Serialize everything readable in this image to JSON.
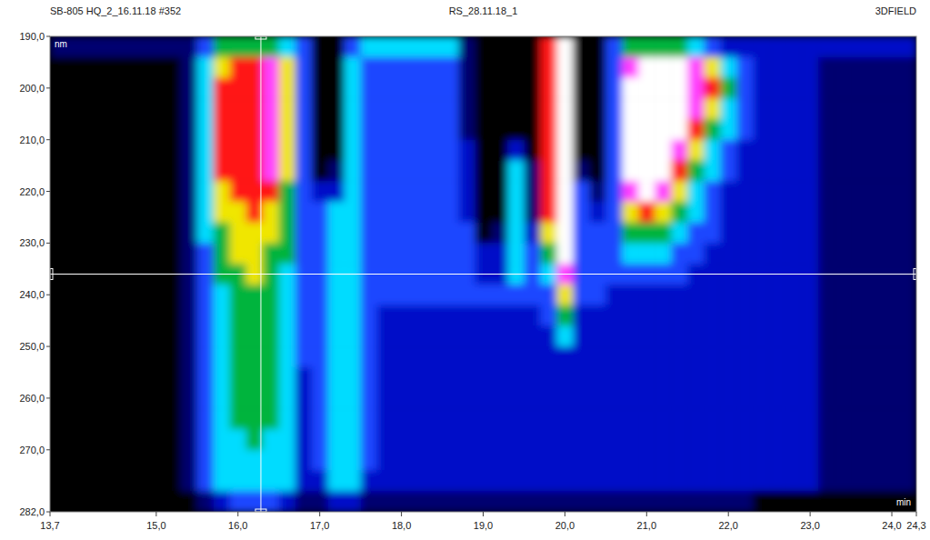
{
  "chart_data": {
    "type": "heatmap",
    "title_left": "SB-805 HQ_2_16.11.18 #352",
    "title": "RS_28.11.18_1",
    "title_right": "3DFIELD",
    "xlabel": "min",
    "ylabel": "nm",
    "xlim": [
      13.7,
      24.3
    ],
    "ylim": [
      190,
      282
    ],
    "xticks": [
      {
        "value": 13.7,
        "label": "13,7"
      },
      {
        "value": 15,
        "label": "15,0"
      },
      {
        "value": 16,
        "label": "16,0"
      },
      {
        "value": 17,
        "label": "17,0"
      },
      {
        "value": 18,
        "label": "18,0"
      },
      {
        "value": 19,
        "label": "19,0"
      },
      {
        "value": 20,
        "label": "20,0"
      },
      {
        "value": 21,
        "label": "21,0"
      },
      {
        "value": 22,
        "label": "22,0"
      },
      {
        "value": 23,
        "label": "23,0"
      },
      {
        "value": 24,
        "label": "24,0"
      },
      {
        "value": 24.3,
        "label": "24,3"
      }
    ],
    "yticks": [
      {
        "value": 190,
        "label": "190,0"
      },
      {
        "value": 200,
        "label": "200,0"
      },
      {
        "value": 210,
        "label": "210,0"
      },
      {
        "value": 220,
        "label": "220,0"
      },
      {
        "value": 230,
        "label": "230,0"
      },
      {
        "value": 240,
        "label": "240,0"
      },
      {
        "value": 250,
        "label": "250,0"
      },
      {
        "value": 260,
        "label": "260,0"
      },
      {
        "value": 270,
        "label": "270,0"
      },
      {
        "value": 282,
        "label": "282,0"
      }
    ],
    "zlim": [
      0,
      9
    ],
    "cursor": {
      "x": 16.28,
      "y": 236
    },
    "x": [
      13.8,
      14.0,
      14.2,
      14.4,
      14.6,
      14.8,
      15.0,
      15.2,
      15.4,
      15.6,
      15.8,
      16.0,
      16.2,
      16.4,
      16.6,
      16.8,
      17.0,
      17.2,
      17.4,
      17.6,
      17.8,
      18.0,
      18.2,
      18.4,
      18.6,
      18.8,
      19.0,
      19.2,
      19.4,
      19.6,
      19.8,
      20.0,
      20.2,
      20.4,
      20.6,
      20.8,
      21.0,
      21.2,
      21.4,
      21.6,
      21.8,
      22.0,
      22.2,
      22.4,
      22.6,
      22.8,
      23.0,
      23.2,
      23.4,
      23.6,
      23.8,
      24.0,
      24.2
    ],
    "y": [
      192,
      196,
      200,
      204,
      208,
      212,
      216,
      220,
      224,
      228,
      232,
      236,
      240,
      244,
      248,
      252,
      256,
      260,
      264,
      268,
      272,
      276,
      280
    ],
    "z": [
      [
        1,
        1,
        1,
        1,
        1,
        1,
        1,
        1,
        1,
        3,
        5,
        5,
        5,
        5,
        4,
        3,
        0,
        0,
        3,
        4,
        4,
        4,
        4,
        4,
        4,
        1,
        0,
        0,
        0,
        0,
        7,
        9,
        0,
        0,
        3,
        5,
        5,
        5,
        5,
        4,
        3,
        2,
        2,
        2,
        2,
        2,
        2,
        2,
        2,
        2,
        2,
        2,
        2
      ],
      [
        0,
        0,
        0,
        0,
        0,
        0,
        0,
        0,
        1,
        4,
        6,
        7,
        7,
        8,
        6,
        3,
        0,
        0,
        4,
        3,
        3,
        3,
        3,
        3,
        3,
        1,
        0,
        0,
        0,
        0,
        7,
        9,
        0,
        0,
        3,
        8,
        9,
        9,
        9,
        8,
        6,
        4,
        3,
        2,
        2,
        2,
        2,
        1,
        1,
        1,
        1,
        1,
        1
      ],
      [
        0,
        0,
        0,
        0,
        0,
        0,
        0,
        0,
        1,
        4,
        7,
        7,
        7,
        8,
        6,
        3,
        0,
        0,
        4,
        3,
        3,
        3,
        3,
        3,
        3,
        1,
        0,
        0,
        0,
        0,
        7,
        9,
        0,
        0,
        3,
        9,
        9,
        9,
        9,
        8,
        7,
        5,
        3,
        2,
        2,
        2,
        2,
        1,
        1,
        1,
        1,
        1,
        1
      ],
      [
        0,
        0,
        0,
        0,
        0,
        0,
        0,
        0,
        1,
        4,
        7,
        7,
        7,
        8,
        6,
        3,
        0,
        0,
        4,
        3,
        3,
        3,
        3,
        3,
        3,
        1,
        0,
        0,
        0,
        0,
        7,
        9,
        0,
        0,
        3,
        9,
        9,
        9,
        9,
        8,
        6,
        4,
        3,
        2,
        2,
        2,
        2,
        1,
        1,
        1,
        1,
        1,
        1
      ],
      [
        0,
        0,
        0,
        0,
        0,
        0,
        0,
        0,
        1,
        4,
        7,
        7,
        7,
        8,
        6,
        3,
        0,
        0,
        4,
        3,
        3,
        3,
        3,
        3,
        3,
        1,
        0,
        0,
        0,
        0,
        7,
        9,
        0,
        0,
        3,
        9,
        9,
        9,
        9,
        7,
        5,
        4,
        3,
        2,
        2,
        2,
        2,
        1,
        1,
        1,
        1,
        1,
        1
      ],
      [
        0,
        0,
        0,
        0,
        0,
        0,
        0,
        0,
        1,
        4,
        7,
        7,
        7,
        8,
        6,
        3,
        0,
        0,
        4,
        3,
        3,
        3,
        3,
        3,
        3,
        2,
        0,
        0,
        2,
        0,
        7,
        9,
        0,
        0,
        3,
        9,
        9,
        9,
        8,
        6,
        4,
        3,
        2,
        2,
        2,
        2,
        2,
        1,
        1,
        1,
        1,
        1,
        1
      ],
      [
        0,
        0,
        0,
        0,
        0,
        0,
        0,
        0,
        1,
        4,
        7,
        7,
        7,
        8,
        6,
        3,
        0,
        1,
        4,
        3,
        3,
        3,
        3,
        3,
        3,
        2,
        0,
        0,
        4,
        1,
        7,
        9,
        1,
        0,
        3,
        9,
        9,
        9,
        7,
        5,
        4,
        3,
        2,
        2,
        2,
        2,
        2,
        1,
        1,
        1,
        1,
        1,
        1
      ],
      [
        0,
        0,
        0,
        0,
        0,
        0,
        0,
        0,
        1,
        4,
        6,
        7,
        7,
        7,
        5,
        3,
        2,
        2,
        4,
        3,
        3,
        3,
        3,
        3,
        3,
        2,
        0,
        0,
        4,
        1,
        7,
        9,
        3,
        1,
        3,
        8,
        9,
        8,
        6,
        4,
        3,
        2,
        2,
        2,
        2,
        2,
        2,
        1,
        1,
        1,
        1,
        1,
        1
      ],
      [
        0,
        0,
        0,
        0,
        0,
        0,
        0,
        0,
        1,
        4,
        6,
        6,
        7,
        6,
        5,
        3,
        3,
        4,
        4,
        3,
        3,
        3,
        3,
        3,
        3,
        2,
        0,
        0,
        4,
        1,
        7,
        9,
        3,
        2,
        3,
        6,
        7,
        6,
        5,
        4,
        3,
        2,
        2,
        2,
        2,
        2,
        2,
        1,
        1,
        1,
        1,
        1,
        1
      ],
      [
        0,
        0,
        0,
        0,
        0,
        0,
        0,
        0,
        1,
        4,
        5,
        6,
        6,
        6,
        5,
        3,
        3,
        4,
        4,
        3,
        3,
        3,
        3,
        3,
        3,
        3,
        0,
        1,
        4,
        2,
        6,
        9,
        3,
        3,
        3,
        5,
        5,
        5,
        4,
        3,
        3,
        2,
        2,
        2,
        2,
        2,
        2,
        1,
        1,
        1,
        1,
        1,
        1
      ],
      [
        0,
        0,
        0,
        0,
        0,
        0,
        0,
        0,
        1,
        3,
        5,
        6,
        6,
        5,
        5,
        3,
        3,
        4,
        4,
        3,
        3,
        3,
        3,
        3,
        3,
        3,
        2,
        2,
        4,
        3,
        5,
        9,
        3,
        3,
        3,
        4,
        4,
        4,
        3,
        3,
        2,
        2,
        2,
        2,
        2,
        2,
        2,
        1,
        1,
        1,
        1,
        1,
        1
      ],
      [
        0,
        0,
        0,
        0,
        0,
        0,
        0,
        0,
        1,
        3,
        5,
        5,
        6,
        5,
        4,
        3,
        3,
        4,
        4,
        3,
        3,
        3,
        3,
        3,
        3,
        3,
        2,
        2,
        4,
        3,
        4,
        8,
        3,
        3,
        3,
        3,
        3,
        3,
        3,
        2,
        2,
        2,
        2,
        2,
        2,
        2,
        2,
        1,
        1,
        1,
        1,
        1,
        1
      ],
      [
        0,
        0,
        0,
        0,
        0,
        0,
        0,
        0,
        1,
        3,
        4,
        5,
        5,
        5,
        4,
        3,
        3,
        4,
        4,
        3,
        3,
        3,
        3,
        3,
        3,
        3,
        3,
        3,
        3,
        3,
        3,
        6,
        3,
        3,
        2,
        2,
        2,
        2,
        2,
        2,
        2,
        2,
        2,
        2,
        2,
        2,
        2,
        1,
        1,
        1,
        1,
        1,
        1
      ],
      [
        0,
        0,
        0,
        0,
        0,
        0,
        0,
        0,
        1,
        3,
        4,
        5,
        5,
        5,
        4,
        3,
        3,
        4,
        4,
        3,
        2,
        2,
        2,
        2,
        2,
        2,
        2,
        2,
        2,
        2,
        3,
        5,
        2,
        2,
        2,
        2,
        2,
        2,
        2,
        2,
        2,
        2,
        2,
        2,
        2,
        2,
        2,
        1,
        1,
        1,
        1,
        1,
        1
      ],
      [
        0,
        0,
        0,
        0,
        0,
        0,
        0,
        0,
        1,
        3,
        4,
        5,
        5,
        5,
        4,
        3,
        3,
        4,
        4,
        3,
        2,
        2,
        2,
        2,
        2,
        2,
        2,
        2,
        2,
        2,
        2,
        4,
        2,
        2,
        2,
        2,
        2,
        2,
        2,
        2,
        2,
        2,
        2,
        2,
        2,
        2,
        2,
        1,
        1,
        1,
        1,
        1,
        1
      ],
      [
        0,
        0,
        0,
        0,
        0,
        0,
        0,
        0,
        1,
        3,
        4,
        5,
        5,
        5,
        4,
        3,
        3,
        4,
        4,
        3,
        2,
        2,
        2,
        2,
        2,
        2,
        2,
        2,
        2,
        2,
        2,
        2,
        2,
        2,
        2,
        2,
        2,
        2,
        2,
        2,
        2,
        2,
        2,
        2,
        2,
        2,
        2,
        1,
        1,
        1,
        1,
        1,
        1
      ],
      [
        0,
        0,
        0,
        0,
        0,
        0,
        0,
        0,
        1,
        3,
        4,
        5,
        5,
        5,
        4,
        2,
        3,
        4,
        4,
        3,
        2,
        2,
        2,
        2,
        2,
        2,
        2,
        2,
        2,
        2,
        2,
        2,
        2,
        2,
        2,
        2,
        2,
        2,
        2,
        2,
        2,
        2,
        2,
        2,
        2,
        2,
        2,
        1,
        1,
        1,
        1,
        1,
        1
      ],
      [
        0,
        0,
        0,
        0,
        0,
        0,
        0,
        0,
        1,
        3,
        4,
        5,
        5,
        5,
        4,
        2,
        3,
        4,
        4,
        3,
        2,
        2,
        2,
        2,
        2,
        2,
        2,
        2,
        2,
        2,
        2,
        2,
        2,
        2,
        2,
        2,
        2,
        2,
        2,
        2,
        2,
        2,
        2,
        2,
        2,
        2,
        2,
        1,
        1,
        1,
        1,
        1,
        1
      ],
      [
        0,
        0,
        0,
        0,
        0,
        0,
        0,
        0,
        1,
        3,
        4,
        5,
        5,
        5,
        4,
        2,
        3,
        4,
        4,
        3,
        2,
        2,
        2,
        2,
        2,
        2,
        2,
        2,
        2,
        2,
        2,
        2,
        2,
        2,
        2,
        2,
        2,
        2,
        2,
        2,
        2,
        2,
        2,
        2,
        2,
        2,
        2,
        1,
        1,
        1,
        1,
        1,
        1
      ],
      [
        0,
        0,
        0,
        0,
        0,
        0,
        0,
        0,
        1,
        3,
        4,
        4,
        5,
        4,
        4,
        2,
        3,
        4,
        4,
        3,
        2,
        2,
        2,
        2,
        2,
        2,
        2,
        2,
        2,
        2,
        2,
        2,
        2,
        2,
        2,
        2,
        2,
        2,
        2,
        2,
        2,
        2,
        2,
        2,
        2,
        2,
        2,
        1,
        1,
        1,
        1,
        1,
        1
      ],
      [
        0,
        0,
        0,
        0,
        0,
        0,
        0,
        0,
        1,
        3,
        4,
        4,
        4,
        4,
        4,
        2,
        3,
        4,
        4,
        3,
        2,
        2,
        2,
        2,
        2,
        2,
        2,
        2,
        2,
        2,
        2,
        2,
        2,
        2,
        2,
        2,
        2,
        2,
        2,
        2,
        2,
        2,
        2,
        2,
        2,
        2,
        2,
        1,
        1,
        1,
        1,
        1,
        1
      ],
      [
        0,
        0,
        0,
        0,
        0,
        0,
        0,
        0,
        1,
        3,
        4,
        4,
        4,
        4,
        4,
        2,
        2,
        4,
        4,
        2,
        2,
        2,
        2,
        2,
        2,
        2,
        2,
        2,
        2,
        2,
        2,
        2,
        2,
        2,
        2,
        2,
        2,
        2,
        2,
        2,
        2,
        2,
        2,
        2,
        2,
        2,
        2,
        1,
        1,
        1,
        1,
        1,
        1
      ],
      [
        0,
        0,
        0,
        0,
        0,
        0,
        0,
        0,
        0,
        1,
        2,
        3,
        3,
        3,
        2,
        1,
        1,
        2,
        2,
        1,
        1,
        1,
        1,
        1,
        1,
        1,
        1,
        1,
        1,
        1,
        1,
        1,
        1,
        1,
        1,
        1,
        1,
        1,
        1,
        1,
        1,
        1,
        1,
        0,
        0,
        0,
        0,
        0,
        0,
        0,
        0,
        0,
        0
      ]
    ]
  }
}
